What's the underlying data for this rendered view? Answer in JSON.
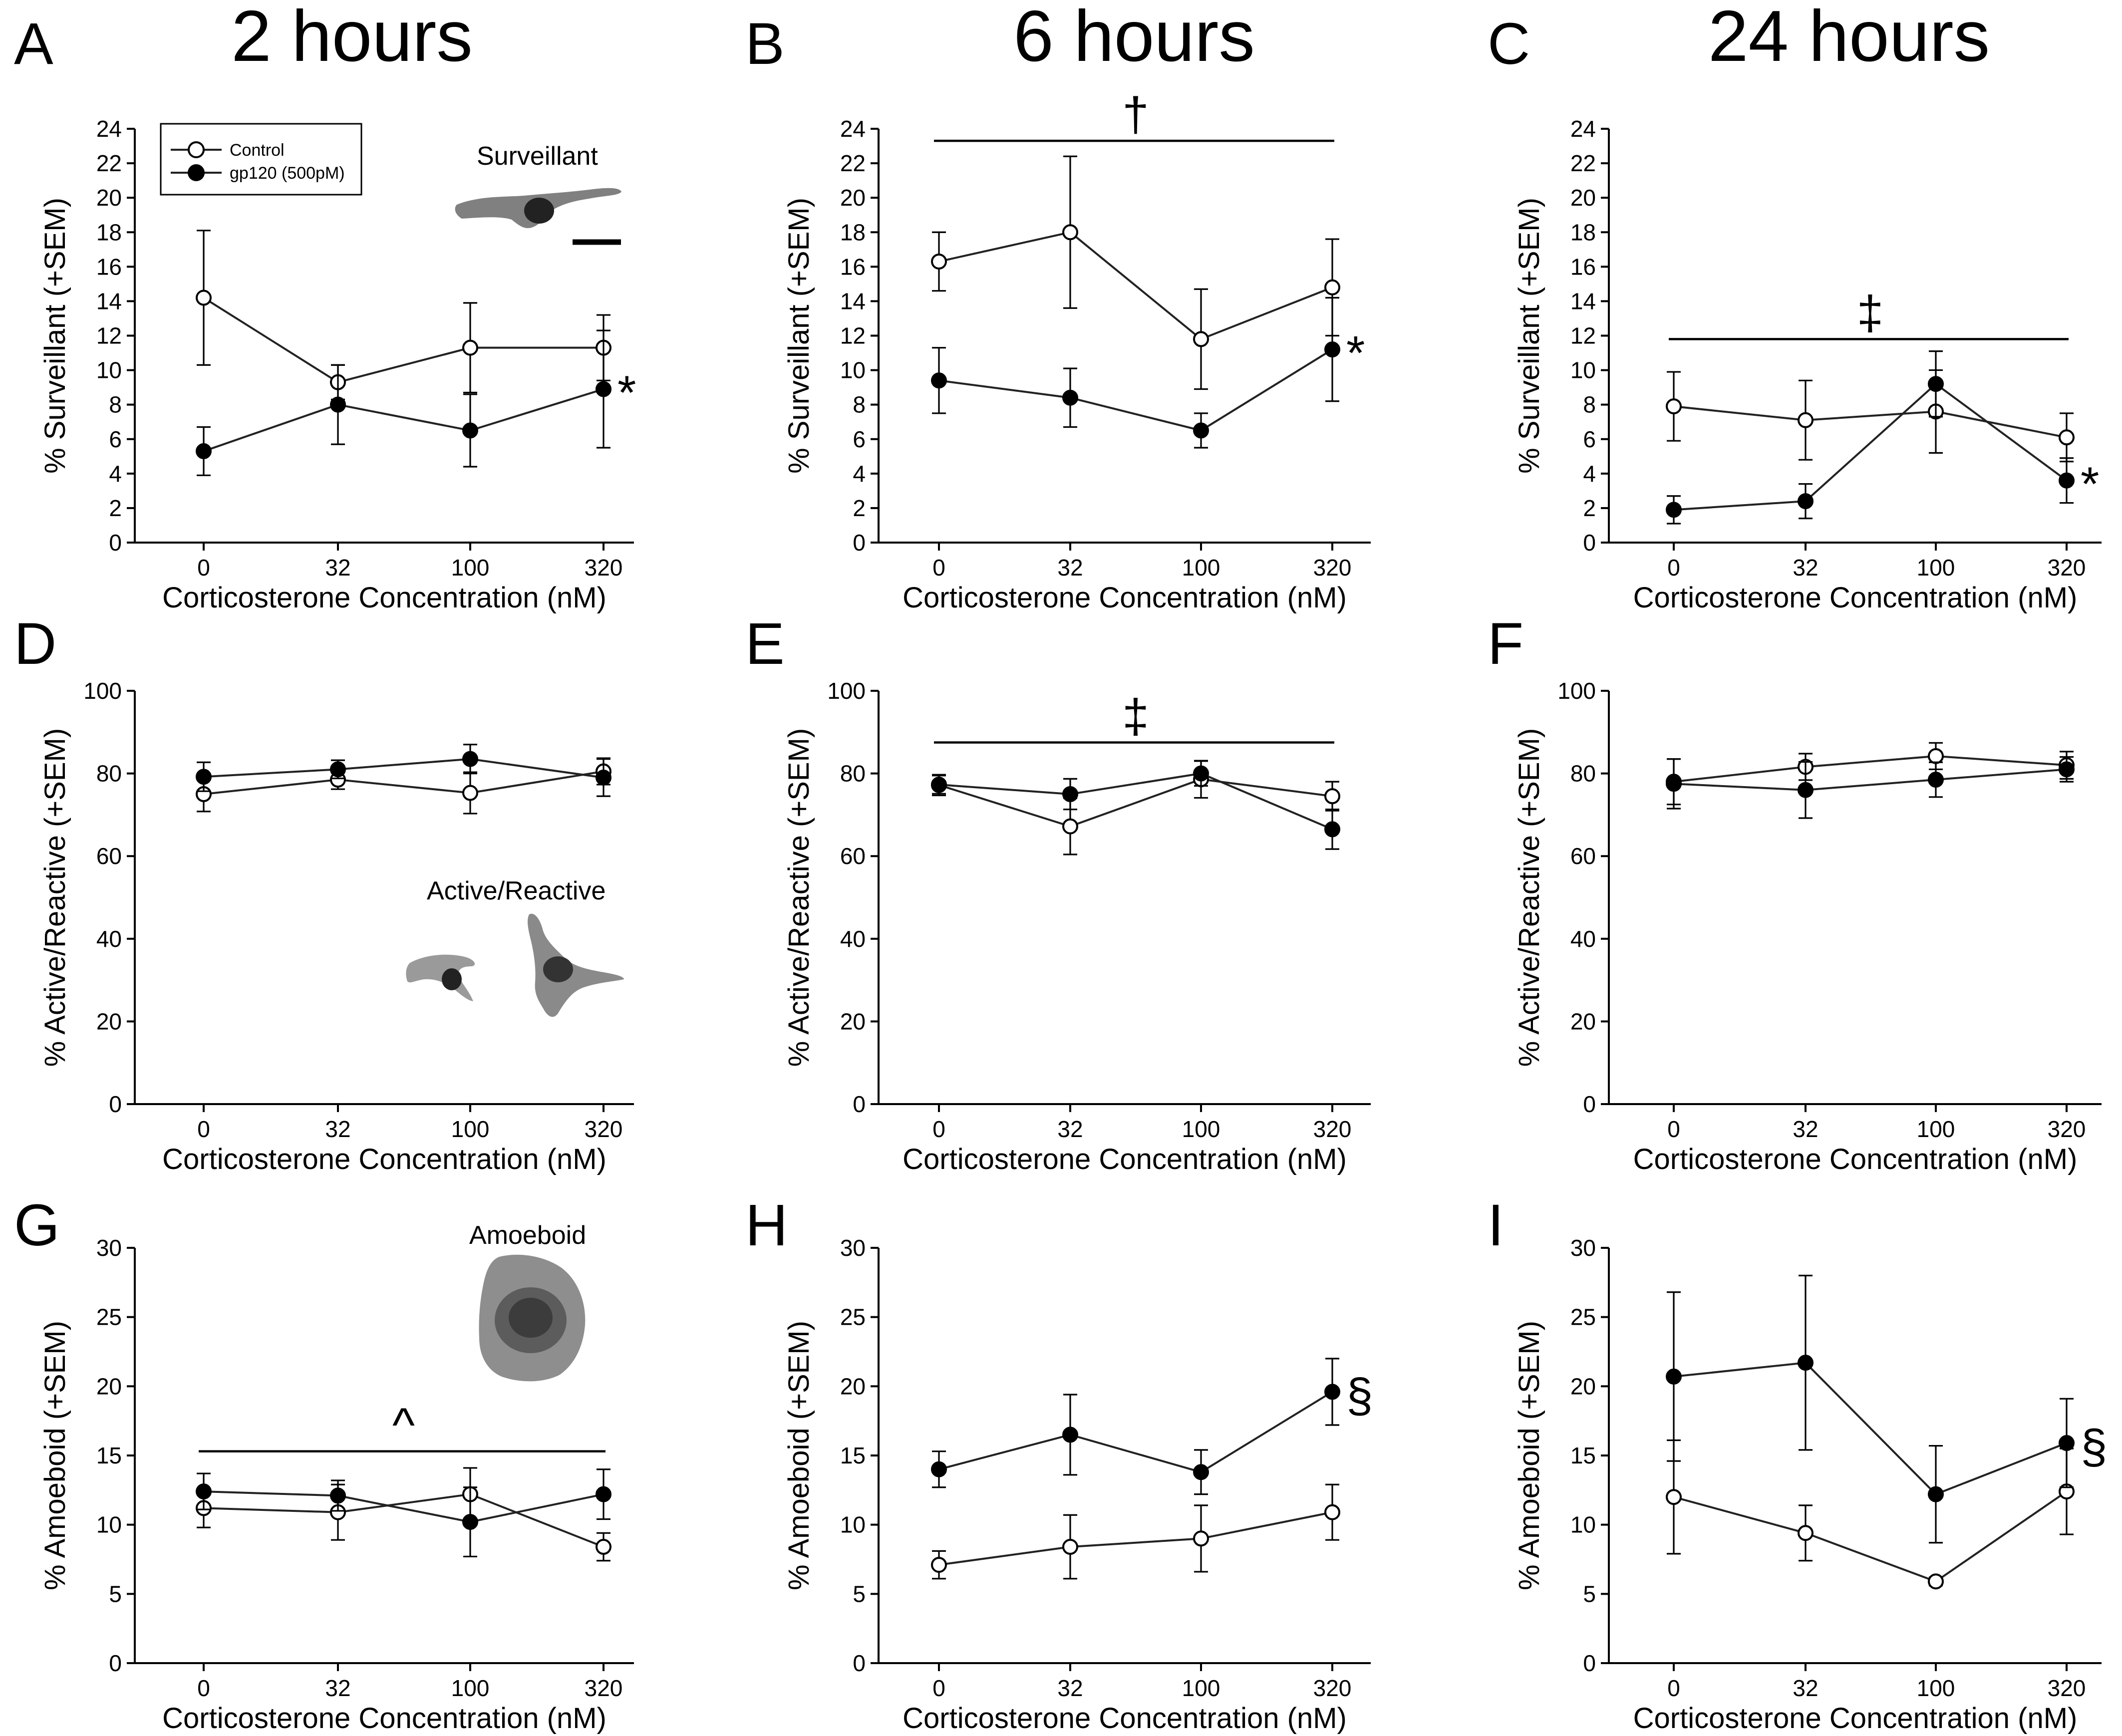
{
  "time_titles": [
    "2 hours",
    "6 hours",
    "24 hours"
  ],
  "legend": {
    "control": "Control",
    "gp120": "gp120 (500pM)"
  },
  "cell_labels": {
    "surveillant": "Surveillant",
    "active": "Active/Reactive",
    "amoeboid": "Amoeboid"
  },
  "colors": {
    "control_fill": "#ffffff",
    "gp120_fill": "#000000",
    "line": "#222222"
  },
  "chart_data": [
    {
      "panel": "A",
      "type": "line",
      "row": "surveillant",
      "time": "2 hours",
      "x": [
        0,
        32,
        100,
        320
      ],
      "xlabel": "Corticosterone Concentration (nM)",
      "ylabel": "% Surveillant (+SEM)",
      "ylim": [
        0,
        24
      ],
      "yticks": [
        0,
        2,
        4,
        6,
        8,
        10,
        12,
        14,
        16,
        18,
        20,
        22,
        24
      ],
      "series": [
        {
          "name": "Control",
          "values": [
            14.2,
            9.3,
            11.3,
            11.3
          ],
          "sem": [
            3.9,
            1.0,
            2.6,
            1.9
          ]
        },
        {
          "name": "gp120 (500pM)",
          "values": [
            5.3,
            8.0,
            6.5,
            8.9
          ],
          "sem": [
            1.4,
            2.3,
            2.1,
            3.4
          ]
        }
      ],
      "significance": {
        "symbol": "*",
        "at_index": 3,
        "bar": null
      }
    },
    {
      "panel": "B",
      "type": "line",
      "row": "surveillant",
      "time": "6 hours",
      "x": [
        0,
        32,
        100,
        320
      ],
      "xlabel": "Corticosterone Concentration (nM)",
      "ylabel": "% Surveillant (+SEM)",
      "ylim": [
        0,
        24
      ],
      "yticks": [
        0,
        2,
        4,
        6,
        8,
        10,
        12,
        14,
        16,
        18,
        20,
        22,
        24
      ],
      "series": [
        {
          "name": "Control",
          "values": [
            16.3,
            18.0,
            11.8,
            14.8
          ],
          "sem": [
            1.7,
            4.4,
            2.9,
            2.8
          ]
        },
        {
          "name": "gp120 (500pM)",
          "values": [
            9.4,
            8.4,
            6.5,
            11.2
          ],
          "sem": [
            1.9,
            1.7,
            1.0,
            3.0
          ]
        }
      ],
      "significance": {
        "symbol": "*",
        "at_index": 3,
        "bar": {
          "symbol": "†",
          "y": 23.3
        }
      }
    },
    {
      "panel": "C",
      "type": "line",
      "row": "surveillant",
      "time": "24 hours",
      "x": [
        0,
        32,
        100,
        320
      ],
      "xlabel": "Corticosterone Concentration (nM)",
      "ylabel": "% Surveillant (+SEM)",
      "ylim": [
        0,
        24
      ],
      "yticks": [
        0,
        2,
        4,
        6,
        8,
        10,
        12,
        14,
        16,
        18,
        20,
        22,
        24
      ],
      "series": [
        {
          "name": "Control",
          "values": [
            7.9,
            7.1,
            7.6,
            6.1
          ],
          "sem": [
            2.0,
            2.3,
            2.4,
            1.4
          ]
        },
        {
          "name": "gp120 (500pM)",
          "values": [
            1.9,
            2.4,
            9.2,
            3.6
          ],
          "sem": [
            0.8,
            1.0,
            1.9,
            1.3
          ]
        }
      ],
      "significance": {
        "symbol": "*",
        "at_index": 3,
        "bar": {
          "symbol": "‡",
          "y": 11.8
        }
      }
    },
    {
      "panel": "D",
      "type": "line",
      "row": "active",
      "time": "2 hours",
      "x": [
        0,
        32,
        100,
        320
      ],
      "xlabel": "Corticosterone Concentration (nM)",
      "ylabel": "% Active/Reactive (+SEM)",
      "ylim": [
        0,
        100
      ],
      "yticks": [
        0,
        20,
        40,
        60,
        80,
        100
      ],
      "series": [
        {
          "name": "Control",
          "values": [
            75.0,
            78.5,
            75.3,
            80.5
          ],
          "sem": [
            4.2,
            2.3,
            5.0,
            3.2
          ]
        },
        {
          "name": "gp120 (500pM)",
          "values": [
            79.2,
            81.0,
            83.5,
            79.0
          ],
          "sem": [
            3.5,
            2.2,
            3.5,
            4.5
          ]
        }
      ],
      "significance": null
    },
    {
      "panel": "E",
      "type": "line",
      "row": "active",
      "time": "6 hours",
      "x": [
        0,
        32,
        100,
        320
      ],
      "xlabel": "Corticosterone Concentration (nM)",
      "ylabel": "% Active/Reactive (+SEM)",
      "ylim": [
        0,
        100
      ],
      "yticks": [
        0,
        20,
        40,
        60,
        80,
        100
      ],
      "series": [
        {
          "name": "Control",
          "values": [
            77.2,
            67.2,
            78.6,
            74.5
          ],
          "sem": [
            2.5,
            6.8,
            4.5,
            3.5
          ]
        },
        {
          "name": "gp120 (500pM)",
          "values": [
            77.3,
            75.0,
            80.0,
            66.5
          ],
          "sem": [
            2.2,
            3.7,
            3.0,
            4.8
          ]
        }
      ],
      "significance": {
        "symbol": null,
        "at_index": null,
        "bar": {
          "symbol": "‡",
          "y": 87.5
        }
      }
    },
    {
      "panel": "F",
      "type": "line",
      "row": "active",
      "time": "24 hours",
      "x": [
        0,
        32,
        100,
        320
      ],
      "xlabel": "Corticosterone Concentration (nM)",
      "ylabel": "% Active/Reactive (+SEM)",
      "ylim": [
        0,
        100
      ],
      "yticks": [
        0,
        20,
        40,
        60,
        80,
        100
      ],
      "series": [
        {
          "name": "Control",
          "values": [
            78.0,
            81.6,
            84.2,
            82.0
          ],
          "sem": [
            5.5,
            3.2,
            3.2,
            3.3
          ]
        },
        {
          "name": "gp120 (500pM)",
          "values": [
            77.5,
            76.0,
            78.5,
            81.0
          ],
          "sem": [
            6.0,
            6.8,
            4.2,
            3.0
          ]
        }
      ],
      "significance": null
    },
    {
      "panel": "G",
      "type": "line",
      "row": "amoeboid",
      "time": "2 hours",
      "x": [
        0,
        32,
        100,
        320
      ],
      "xlabel": "Corticosterone Concentration (nM)",
      "ylabel": "% Amoeboid (+SEM)",
      "ylim": [
        0,
        30
      ],
      "yticks": [
        0,
        5,
        10,
        15,
        20,
        25,
        30
      ],
      "series": [
        {
          "name": "Control",
          "values": [
            11.2,
            10.9,
            12.2,
            8.4
          ],
          "sem": [
            1.4,
            2.0,
            1.9,
            1.0
          ]
        },
        {
          "name": "gp120 (500pM)",
          "values": [
            12.4,
            12.1,
            10.2,
            12.2
          ],
          "sem": [
            1.3,
            1.1,
            2.5,
            1.8
          ]
        }
      ],
      "significance": {
        "symbol": null,
        "at_index": null,
        "bar": {
          "symbol": "^",
          "y": 15.3
        }
      }
    },
    {
      "panel": "H",
      "type": "line",
      "row": "amoeboid",
      "time": "6 hours",
      "x": [
        0,
        32,
        100,
        320
      ],
      "xlabel": "Corticosterone Concentration (nM)",
      "ylabel": "% Amoeboid (+SEM)",
      "ylim": [
        0,
        30
      ],
      "yticks": [
        0,
        5,
        10,
        15,
        20,
        25,
        30
      ],
      "series": [
        {
          "name": "Control",
          "values": [
            7.1,
            8.4,
            9.0,
            10.9
          ],
          "sem": [
            1.0,
            2.3,
            2.4,
            2.0
          ]
        },
        {
          "name": "gp120 (500pM)",
          "values": [
            14.0,
            16.5,
            13.8,
            19.6
          ],
          "sem": [
            1.3,
            2.9,
            1.6,
            2.4
          ]
        }
      ],
      "significance": {
        "symbol": "§",
        "at_index": 3,
        "bar": null
      }
    },
    {
      "panel": "I",
      "type": "line",
      "row": "amoeboid",
      "time": "24 hours",
      "x": [
        0,
        32,
        100,
        320
      ],
      "xlabel": "Corticosterone Concentration (nM)",
      "ylabel": "% Amoeboid (+SEM)",
      "ylim": [
        0,
        30
      ],
      "yticks": [
        0,
        5,
        10,
        15,
        20,
        25,
        30
      ],
      "series": [
        {
          "name": "Control",
          "values": [
            12.0,
            9.4,
            5.9,
            12.4
          ],
          "sem": [
            4.1,
            2.0,
            0.3,
            3.1
          ]
        },
        {
          "name": "gp120 (500pM)",
          "values": [
            20.7,
            21.7,
            12.2,
            15.9
          ],
          "sem": [
            6.1,
            6.3,
            3.5,
            3.2
          ]
        }
      ],
      "significance": {
        "symbol": "§",
        "at_index": 3,
        "bar": null
      }
    }
  ]
}
